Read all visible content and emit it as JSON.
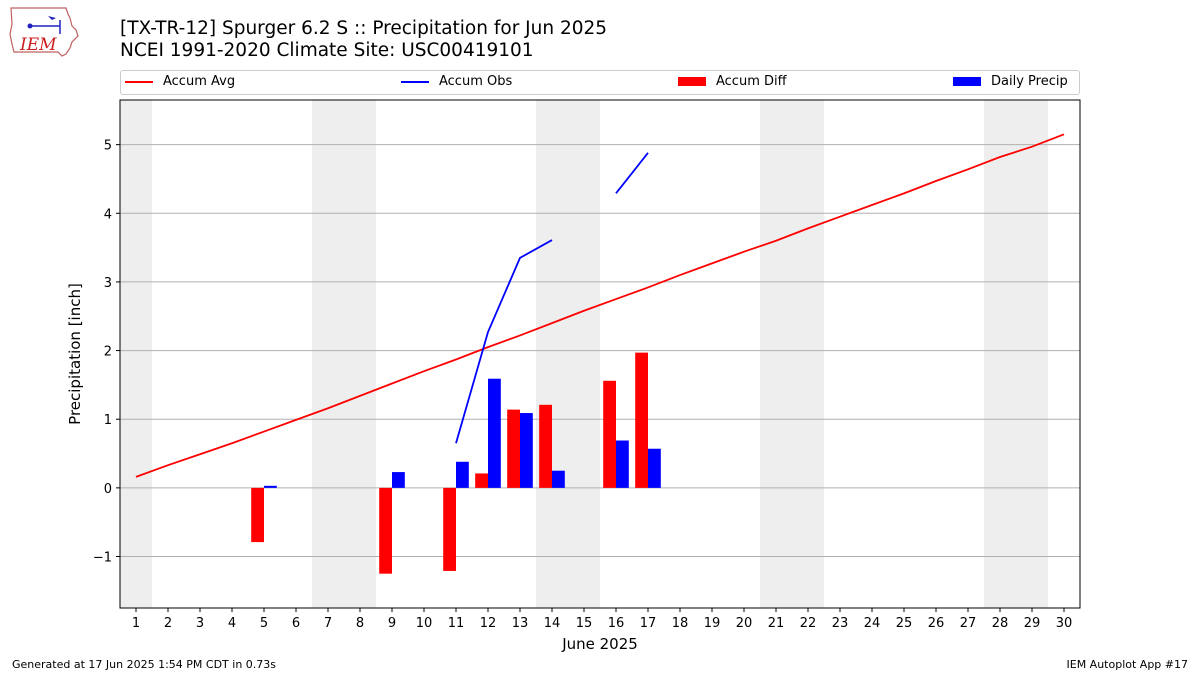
{
  "header": {
    "title_line1": "[TX-TR-12] Spurger 6.2 S :: Precipitation for Jun 2025",
    "title_line2": "NCEI 1991-2020 Climate Site: USC00419101"
  },
  "logo": {
    "text": "IEM"
  },
  "footer": {
    "left": "Generated at 17 Jun 2025 1:54 PM CDT in 0.73s",
    "right": "IEM Autoplot App #17"
  },
  "colors": {
    "accum_avg": "#ff0000",
    "accum_obs": "#0000ff",
    "accum_diff": "#ff0000",
    "daily_precip": "#0000ff",
    "weekend_shade": "#eeeeee",
    "grid": "#b0b0b0"
  },
  "legend": {
    "placement": "top",
    "items": [
      {
        "label": "Accum Avg",
        "kind": "line",
        "color": "#ff0000"
      },
      {
        "label": "Accum Obs",
        "kind": "line",
        "color": "#0000ff"
      },
      {
        "label": "Accum Diff",
        "kind": "patch",
        "color": "#ff0000"
      },
      {
        "label": "Daily Precip",
        "kind": "patch",
        "color": "#0000ff"
      }
    ]
  },
  "chart_data": {
    "type": "bar",
    "title": "[TX-TR-12] Spurger 6.2 S :: Precipitation for Jun 2025",
    "subtitle": "NCEI 1991-2020 Climate Site: USC00419101",
    "xlabel": "June 2025",
    "ylabel": "Precipitation [inch]",
    "x": [
      1,
      2,
      3,
      4,
      5,
      6,
      7,
      8,
      9,
      10,
      11,
      12,
      13,
      14,
      15,
      16,
      17,
      18,
      19,
      20,
      21,
      22,
      23,
      24,
      25,
      26,
      27,
      28,
      29,
      30
    ],
    "xlim": [
      0.5,
      30.5
    ],
    "ylim": [
      -1.75,
      5.65
    ],
    "yticks": [
      -1,
      0,
      1,
      2,
      3,
      4,
      5
    ],
    "grid": "horizontal",
    "weekend_days": [
      1,
      7,
      8,
      14,
      15,
      21,
      22,
      28,
      29
    ],
    "series": [
      {
        "name": "Accum Avg",
        "kind": "line",
        "values": [
          0.16,
          0.33,
          0.49,
          0.65,
          0.82,
          0.99,
          1.16,
          1.34,
          1.52,
          1.7,
          1.87,
          2.05,
          2.22,
          2.4,
          2.58,
          2.75,
          2.92,
          3.1,
          3.27,
          3.44,
          3.6,
          3.78,
          3.95,
          4.12,
          4.29,
          4.47,
          4.64,
          4.82,
          4.97,
          5.15
        ]
      },
      {
        "name": "Accum Obs",
        "kind": "line",
        "values": [
          null,
          null,
          null,
          null,
          null,
          null,
          null,
          null,
          null,
          null,
          0.65,
          2.27,
          3.35,
          3.61,
          null,
          4.29,
          4.88,
          null,
          null,
          null,
          null,
          null,
          null,
          null,
          null,
          null,
          null,
          null,
          null,
          null
        ]
      },
      {
        "name": "Accum Diff",
        "kind": "bar",
        "values": [
          null,
          null,
          null,
          null,
          -0.79,
          null,
          null,
          null,
          -1.25,
          null,
          -1.21,
          0.21,
          1.14,
          1.21,
          null,
          1.56,
          1.97,
          null,
          null,
          null,
          null,
          null,
          null,
          null,
          null,
          null,
          null,
          null,
          null,
          null
        ]
      },
      {
        "name": "Daily Precip",
        "kind": "bar",
        "values": [
          0,
          0,
          0,
          0,
          0.03,
          0,
          0,
          0,
          0.23,
          0,
          0.38,
          1.59,
          1.09,
          0.25,
          0,
          0.69,
          0.57,
          null,
          null,
          null,
          null,
          null,
          null,
          null,
          null,
          null,
          null,
          null,
          null,
          null
        ]
      }
    ]
  }
}
